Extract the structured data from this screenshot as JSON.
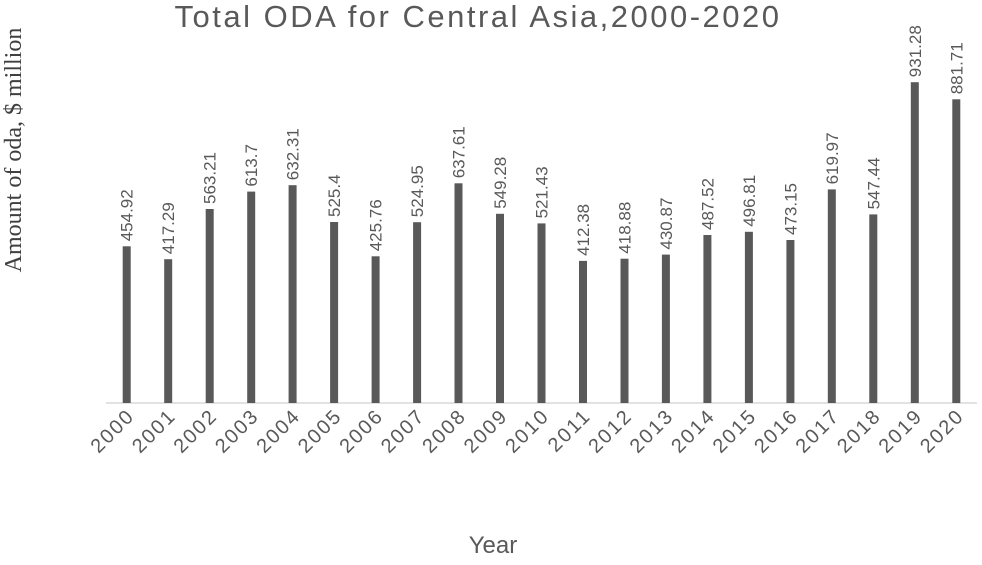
{
  "chart_data": {
    "type": "bar",
    "title": "Total ODA for Central Asia,2000-2020",
    "xlabel": "Year",
    "ylabel": "Amount of oda, $ million",
    "categories": [
      "2000",
      "2001",
      "2002",
      "2003",
      "2004",
      "2005",
      "2006",
      "2007",
      "2008",
      "2009",
      "2010",
      "2011",
      "2012",
      "2013",
      "2014",
      "2015",
      "2016",
      "2017",
      "2018",
      "2019",
      "2020"
    ],
    "values": [
      454.92,
      417.29,
      563.21,
      613.7,
      632.31,
      525.4,
      425.76,
      524.95,
      637.61,
      549.28,
      521.43,
      412.38,
      418.88,
      430.87,
      487.52,
      496.81,
      473.15,
      619.97,
      547.44,
      931.28,
      881.71
    ],
    "data_labels": [
      "454.92",
      "417.29",
      "563.21",
      "613.7",
      "632.31",
      "525.4",
      "425.76",
      "524.95",
      "637.61",
      "549.28",
      "521.43",
      "412.38",
      "418.88",
      "430.87",
      "487.52",
      "496.81",
      "473.15",
      "619.97",
      "547.44",
      "931.28",
      "881.71"
    ],
    "ylim": [
      0,
      1000
    ],
    "grid": false,
    "legend": "none",
    "bar_color": "#595959",
    "axis_color": "#d9d9d9"
  }
}
